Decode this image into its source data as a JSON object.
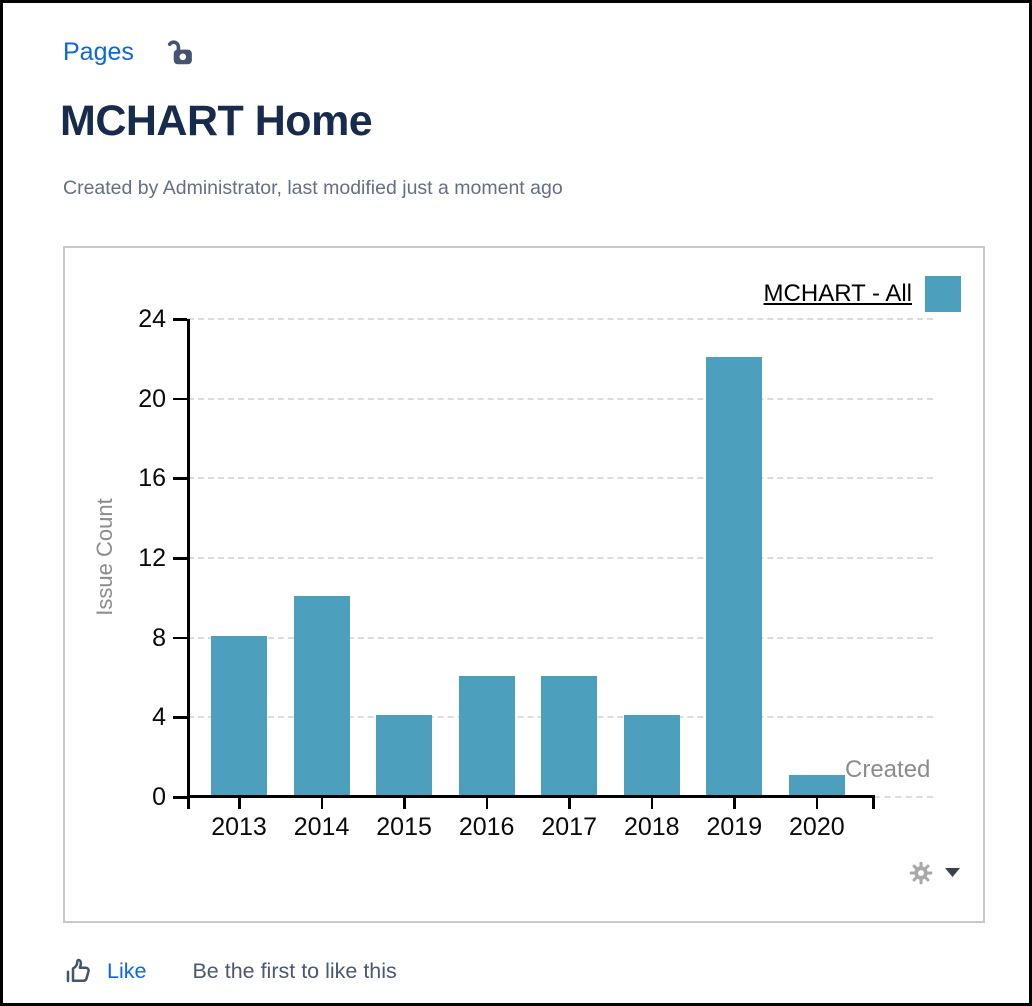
{
  "header": {
    "breadcrumb": "Pages",
    "title": "MCHART Home",
    "byline": "Created by Administrator, last modified just a moment ago"
  },
  "icons": {
    "breadcrumb_lock": "unlock-icon",
    "chart_settings": "gear-icon",
    "chart_dropdown": "chevron-down-icon",
    "like": "thumbs-up-icon"
  },
  "chart_data": {
    "type": "bar",
    "title": "",
    "series_name": "MCHART - All",
    "categories": [
      "2013",
      "2014",
      "2015",
      "2016",
      "2017",
      "2018",
      "2019",
      "2020"
    ],
    "values": [
      8,
      10,
      4,
      6,
      6,
      4,
      22,
      1
    ],
    "ylabel": "Issue Count",
    "xlabel": "Created",
    "yticks": [
      0,
      4,
      8,
      12,
      16,
      20,
      24
    ],
    "ylim": [
      0,
      24
    ],
    "grid": "horizontal-dashed",
    "legend_position": "top-right",
    "bar_color": "#4D9FBE"
  },
  "colors": {
    "link_blue": "#0C66E4",
    "title_navy": "#172B4D",
    "bar_teal": "#4D9FBE",
    "muted_gray": "#8c8c8c"
  },
  "footer": {
    "like_label": "Like",
    "like_hint": "Be the first to like this"
  }
}
